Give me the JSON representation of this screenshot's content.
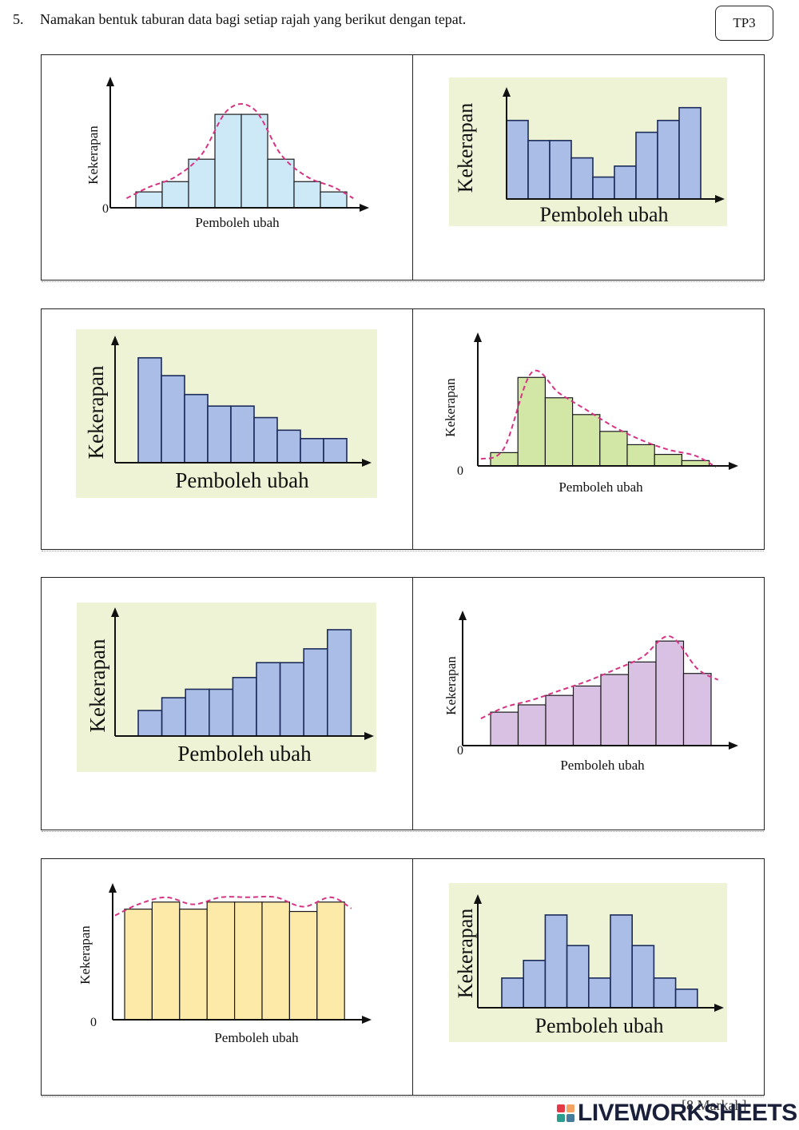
{
  "question": {
    "number": "5.",
    "text": "Namakan bentuk taburan data bagi setiap rajah yang berikut dengan tepat.",
    "level_badge": "TP3"
  },
  "footer": {
    "marks": "[8 Markah]",
    "logo_text": "LIVEWORKSHEETS",
    "logo_colors": [
      "#e63946",
      "#f4a261",
      "#2a9d8f",
      "#457b9d"
    ]
  },
  "chart_data": [
    {
      "type": "bar",
      "distribution": "normal",
      "style": "outlined-with-curve",
      "values": [
        0.17,
        0.28,
        0.52,
        1.0,
        1.0,
        0.52,
        0.28,
        0.17
      ],
      "xlabel": "Pemboleh ubah",
      "ylabel": "Kekerapan",
      "origin_label": "0",
      "bar_color": "#cde9f7",
      "curve_color": "#d63384",
      "ylim": [
        0,
        1.3
      ],
      "curve": true
    },
    {
      "type": "bar",
      "distribution": "bimodal-u",
      "style": "panel",
      "values": [
        0.86,
        0.64,
        0.64,
        0.45,
        0.24,
        0.36,
        0.73,
        0.86,
        1.0
      ],
      "xlabel": "Pemboleh ubah",
      "ylabel": "Kekerapan",
      "origin_label": "",
      "bar_color": "#a9bde6",
      "panel_color": "#eef3d5",
      "ylim": [
        0,
        1.12
      ],
      "curve": false
    },
    {
      "type": "bar",
      "distribution": "decreasing",
      "style": "panel",
      "values": [
        1.0,
        0.83,
        0.65,
        0.54,
        0.54,
        0.43,
        0.31,
        0.23,
        0.23
      ],
      "xlabel": "Pemboleh ubah",
      "ylabel": "Kekerapan",
      "origin_label": "",
      "bar_color": "#a9bde6",
      "panel_color": "#eef3d5",
      "ylim": [
        0,
        1.12
      ],
      "curve": false
    },
    {
      "type": "bar",
      "distribution": "right-skewed",
      "style": "outlined-with-curve",
      "values": [
        0.15,
        1.0,
        0.77,
        0.58,
        0.39,
        0.24,
        0.13,
        0.06
      ],
      "xlabel": "Pemboleh ubah",
      "ylabel": "Kekerapan",
      "origin_label": "0",
      "bar_color": "#d2e6a6",
      "curve_color": "#d63384",
      "ylim": [
        0,
        1.4
      ],
      "curve": true
    },
    {
      "type": "bar",
      "distribution": "increasing",
      "style": "panel",
      "values": [
        0.24,
        0.36,
        0.44,
        0.44,
        0.55,
        0.69,
        0.69,
        0.82,
        1.0
      ],
      "xlabel": "Pemboleh ubah",
      "ylabel": "Kekerapan",
      "origin_label": "",
      "bar_color": "#a9bde6",
      "panel_color": "#eef3d5",
      "ylim": [
        0,
        1.12
      ],
      "curve": false
    },
    {
      "type": "bar",
      "distribution": "left-skewed",
      "style": "outlined-with-curve",
      "values": [
        0.32,
        0.39,
        0.48,
        0.57,
        0.68,
        0.8,
        1.0,
        0.69
      ],
      "xlabel": "Pemboleh ubah",
      "ylabel": "Kekerapan",
      "origin_label": "0",
      "bar_color": "#d9c1e3",
      "curve_color": "#d63384",
      "ylim": [
        0,
        1.2
      ],
      "curve": true
    },
    {
      "type": "bar",
      "distribution": "uniform",
      "style": "outlined-with-curve",
      "values": [
        0.94,
        1.0,
        0.94,
        1.0,
        1.0,
        1.0,
        0.92,
        1.0
      ],
      "xlabel": "Pemboleh ubah",
      "ylabel": "Kekerapan",
      "origin_label": "0",
      "bar_color": "#fde9a8",
      "curve_color": "#d63384",
      "ylim": [
        0,
        1.08
      ],
      "curve": true
    },
    {
      "type": "bar",
      "distribution": "bimodal",
      "style": "panel",
      "values": [
        0.32,
        0.51,
        1.0,
        0.67,
        0.32,
        1.0,
        0.67,
        0.32,
        0.2
      ],
      "xlabel": "Pemboleh ubah",
      "ylabel": "Kekerapan",
      "origin_label": "",
      "bar_color": "#a9bde6",
      "panel_color": "#eef3d5",
      "ylim": [
        0,
        1.12
      ],
      "curve": false
    }
  ]
}
